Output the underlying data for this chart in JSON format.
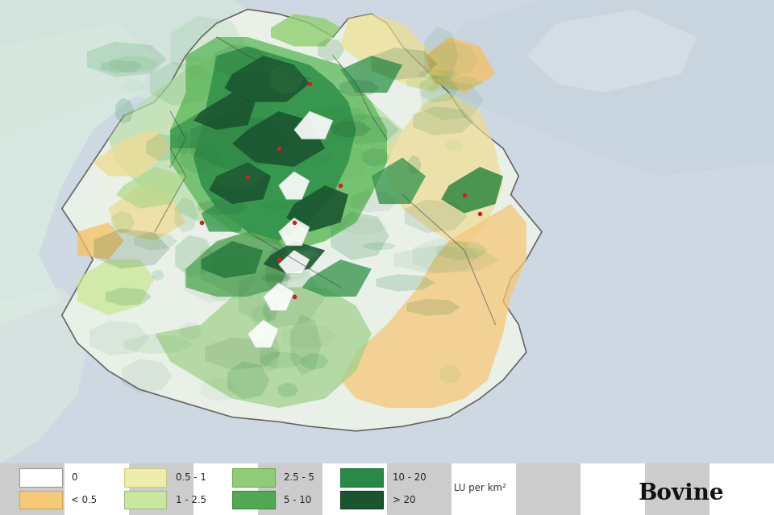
{
  "title": "Bovine",
  "subtitle": "LU per km²",
  "bg_checker1": "#cccccc",
  "bg_checker2": "#ffffff",
  "surrounding_color": "#d4dfe6",
  "ethiopia_base": "#e8f2e8",
  "legend_bg": "#f5f5f5",
  "legend_items": [
    {
      "label": "0",
      "color": "#ffffff",
      "edgecolor": "#999999"
    },
    {
      "label": "< 0.5",
      "color": "#f5c87a",
      "edgecolor": "#ccaa55"
    },
    {
      "label": "0.5 - 1",
      "color": "#f0edaa",
      "edgecolor": "#cccc88"
    },
    {
      "label": "1 - 2.5",
      "color": "#c8e8a0",
      "edgecolor": "#aabb88"
    },
    {
      "label": "2.5 - 5",
      "color": "#90cc78",
      "edgecolor": "#70aa55"
    },
    {
      "label": "5 - 10",
      "color": "#52a852",
      "edgecolor": "#408840"
    },
    {
      "label": "10 - 20",
      "color": "#2a8848",
      "edgecolor": "#207838"
    },
    {
      "label": "> 20",
      "color": "#1a5530",
      "edgecolor": "#0e3820"
    }
  ],
  "figsize": [
    9.6,
    6.39
  ],
  "dpi": 100
}
